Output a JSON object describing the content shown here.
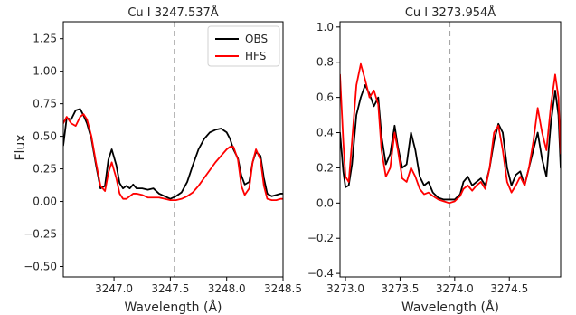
{
  "figure": {
    "ylabel": "Flux",
    "xlabel": "Wavelength (Å)"
  },
  "chart_data": [
    {
      "type": "line",
      "title": "Cu I 3247.537Å",
      "xlabel": "Wavelength (Å)",
      "ylabel": "Flux",
      "xlim": [
        3246.55,
        3248.5
      ],
      "ylim": [
        -0.58,
        1.38
      ],
      "xticks": [
        3247.0,
        3247.5,
        3248.0,
        3248.5
      ],
      "xtick_labels": [
        "3247.0",
        "3247.5",
        "3248.0",
        "3248.5"
      ],
      "yticks": [
        -0.5,
        -0.25,
        0.0,
        0.25,
        0.5,
        0.75,
        1.0,
        1.25
      ],
      "ytick_labels": [
        "−0.50",
        "−0.25",
        "0.00",
        "0.25",
        "0.50",
        "0.75",
        "1.00",
        "1.25"
      ],
      "vline": 3247.537,
      "grid": false,
      "legend": {
        "position": "top-right"
      },
      "series": [
        {
          "name": "OBS",
          "color": "#000000",
          "x": [
            3246.55,
            3246.58,
            3246.62,
            3246.66,
            3246.7,
            3246.73,
            3246.76,
            3246.8,
            3246.84,
            3246.88,
            3246.92,
            3246.95,
            3246.98,
            3247.02,
            3247.05,
            3247.08,
            3247.11,
            3247.14,
            3247.17,
            3247.2,
            3247.25,
            3247.3,
            3247.35,
            3247.4,
            3247.45,
            3247.5,
            3247.55,
            3247.6,
            3247.65,
            3247.7,
            3247.75,
            3247.8,
            3247.85,
            3247.9,
            3247.95,
            3248.0,
            3248.03,
            3248.06,
            3248.1,
            3248.13,
            3248.16,
            3248.2,
            3248.23,
            3248.26,
            3248.3,
            3248.33,
            3248.36,
            3248.4,
            3248.44,
            3248.48,
            3248.5
          ],
          "y": [
            0.43,
            0.64,
            0.63,
            0.7,
            0.71,
            0.66,
            0.6,
            0.48,
            0.28,
            0.1,
            0.12,
            0.32,
            0.4,
            0.28,
            0.14,
            0.1,
            0.12,
            0.1,
            0.13,
            0.1,
            0.1,
            0.09,
            0.1,
            0.06,
            0.04,
            0.02,
            0.04,
            0.07,
            0.15,
            0.28,
            0.4,
            0.48,
            0.53,
            0.55,
            0.56,
            0.53,
            0.48,
            0.4,
            0.33,
            0.2,
            0.13,
            0.15,
            0.3,
            0.38,
            0.35,
            0.18,
            0.06,
            0.04,
            0.05,
            0.06,
            0.06
          ]
        },
        {
          "name": "HFS",
          "color": "#ff0000",
          "x": [
            3246.55,
            3246.58,
            3246.62,
            3246.66,
            3246.7,
            3246.73,
            3246.76,
            3246.8,
            3246.84,
            3246.88,
            3246.92,
            3246.95,
            3246.98,
            3247.02,
            3247.05,
            3247.08,
            3247.11,
            3247.14,
            3247.17,
            3247.2,
            3247.25,
            3247.3,
            3247.35,
            3247.4,
            3247.45,
            3247.5,
            3247.55,
            3247.6,
            3247.65,
            3247.7,
            3247.75,
            3247.8,
            3247.85,
            3247.9,
            3247.95,
            3248.0,
            3248.03,
            3248.06,
            3248.1,
            3248.13,
            3248.16,
            3248.2,
            3248.23,
            3248.26,
            3248.3,
            3248.33,
            3248.36,
            3248.4,
            3248.44,
            3248.48,
            3248.5
          ],
          "y": [
            0.6,
            0.65,
            0.6,
            0.58,
            0.65,
            0.67,
            0.63,
            0.5,
            0.3,
            0.12,
            0.08,
            0.22,
            0.3,
            0.18,
            0.06,
            0.02,
            0.02,
            0.04,
            0.06,
            0.06,
            0.05,
            0.03,
            0.03,
            0.03,
            0.02,
            0.01,
            0.01,
            0.02,
            0.04,
            0.07,
            0.12,
            0.18,
            0.24,
            0.3,
            0.35,
            0.4,
            0.42,
            0.42,
            0.32,
            0.12,
            0.05,
            0.1,
            0.3,
            0.4,
            0.32,
            0.12,
            0.02,
            0.01,
            0.01,
            0.02,
            0.02
          ]
        }
      ]
    },
    {
      "type": "line",
      "title": "Cu I 3273.954Å",
      "xlabel": "Wavelength (Å)",
      "ylabel": "",
      "xlim": [
        3272.95,
        3274.97
      ],
      "ylim": [
        -0.42,
        1.03
      ],
      "xticks": [
        3273.0,
        3273.5,
        3274.0,
        3274.5
      ],
      "xtick_labels": [
        "3273.0",
        "3273.5",
        "3274.0",
        "3274.5"
      ],
      "yticks": [
        -0.4,
        -0.2,
        0.0,
        0.2,
        0.4,
        0.6,
        0.8,
        1.0
      ],
      "ytick_labels": [
        "−0.4",
        "−0.2",
        "0.0",
        "0.2",
        "0.4",
        "0.6",
        "0.8",
        "1.0"
      ],
      "vline": 3273.954,
      "grid": false,
      "series": [
        {
          "name": "OBS",
          "color": "#000000",
          "x": [
            3272.95,
            3272.98,
            3273.0,
            3273.03,
            3273.06,
            3273.1,
            3273.14,
            3273.18,
            3273.22,
            3273.26,
            3273.3,
            3273.33,
            3273.37,
            3273.41,
            3273.45,
            3273.48,
            3273.52,
            3273.56,
            3273.6,
            3273.64,
            3273.68,
            3273.72,
            3273.76,
            3273.8,
            3273.85,
            3273.9,
            3273.95,
            3274.0,
            3274.05,
            3274.08,
            3274.12,
            3274.16,
            3274.2,
            3274.24,
            3274.28,
            3274.32,
            3274.36,
            3274.4,
            3274.44,
            3274.48,
            3274.52,
            3274.56,
            3274.6,
            3274.64,
            3274.68,
            3274.72,
            3274.76,
            3274.8,
            3274.84,
            3274.88,
            3274.92,
            3274.95,
            3274.97
          ],
          "y": [
            0.4,
            0.18,
            0.09,
            0.1,
            0.22,
            0.5,
            0.6,
            0.67,
            0.62,
            0.55,
            0.6,
            0.38,
            0.22,
            0.28,
            0.44,
            0.32,
            0.2,
            0.22,
            0.4,
            0.3,
            0.15,
            0.1,
            0.12,
            0.06,
            0.03,
            0.02,
            0.02,
            0.02,
            0.05,
            0.12,
            0.15,
            0.1,
            0.12,
            0.14,
            0.1,
            0.2,
            0.35,
            0.45,
            0.4,
            0.2,
            0.1,
            0.16,
            0.18,
            0.1,
            0.2,
            0.3,
            0.4,
            0.25,
            0.15,
            0.45,
            0.64,
            0.5,
            0.2
          ]
        },
        {
          "name": "HFS",
          "color": "#ff0000",
          "x": [
            3272.95,
            3272.98,
            3273.0,
            3273.03,
            3273.06,
            3273.1,
            3273.14,
            3273.18,
            3273.22,
            3273.26,
            3273.3,
            3273.33,
            3273.37,
            3273.41,
            3273.45,
            3273.48,
            3273.52,
            3273.56,
            3273.6,
            3273.64,
            3273.68,
            3273.72,
            3273.76,
            3273.8,
            3273.85,
            3273.9,
            3273.95,
            3274.0,
            3274.05,
            3274.08,
            3274.12,
            3274.16,
            3274.2,
            3274.24,
            3274.28,
            3274.32,
            3274.36,
            3274.4,
            3274.44,
            3274.48,
            3274.52,
            3274.56,
            3274.6,
            3274.64,
            3274.68,
            3274.72,
            3274.76,
            3274.8,
            3274.84,
            3274.88,
            3274.92,
            3274.95,
            3274.97
          ],
          "y": [
            0.73,
            0.35,
            0.15,
            0.12,
            0.35,
            0.67,
            0.79,
            0.7,
            0.6,
            0.64,
            0.56,
            0.3,
            0.15,
            0.2,
            0.4,
            0.3,
            0.14,
            0.12,
            0.2,
            0.15,
            0.08,
            0.05,
            0.06,
            0.04,
            0.02,
            0.01,
            0.0,
            0.01,
            0.04,
            0.08,
            0.1,
            0.07,
            0.1,
            0.12,
            0.08,
            0.2,
            0.4,
            0.44,
            0.3,
            0.12,
            0.06,
            0.1,
            0.15,
            0.1,
            0.2,
            0.35,
            0.54,
            0.4,
            0.3,
            0.55,
            0.73,
            0.6,
            0.28
          ]
        }
      ]
    }
  ]
}
